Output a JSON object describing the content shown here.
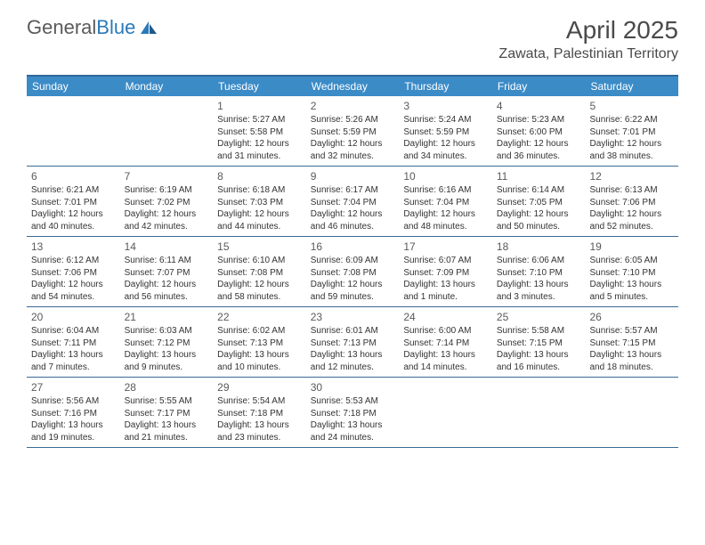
{
  "logo": {
    "text_gray": "General",
    "text_blue": "Blue"
  },
  "header": {
    "month_title": "April 2025",
    "location": "Zawata, Palestinian Territory"
  },
  "colors": {
    "header_bg": "#3b8bc7",
    "header_text": "#ffffff",
    "border": "#3b6a95",
    "top_border": "#30689c",
    "daynum": "#5a5a5a",
    "body_text": "#333333"
  },
  "weekdays": [
    "Sunday",
    "Monday",
    "Tuesday",
    "Wednesday",
    "Thursday",
    "Friday",
    "Saturday"
  ],
  "weeks": [
    [
      {
        "empty": true
      },
      {
        "empty": true
      },
      {
        "day": "1",
        "sunrise": "Sunrise: 5:27 AM",
        "sunset": "Sunset: 5:58 PM",
        "daylight": "Daylight: 12 hours and 31 minutes."
      },
      {
        "day": "2",
        "sunrise": "Sunrise: 5:26 AM",
        "sunset": "Sunset: 5:59 PM",
        "daylight": "Daylight: 12 hours and 32 minutes."
      },
      {
        "day": "3",
        "sunrise": "Sunrise: 5:24 AM",
        "sunset": "Sunset: 5:59 PM",
        "daylight": "Daylight: 12 hours and 34 minutes."
      },
      {
        "day": "4",
        "sunrise": "Sunrise: 5:23 AM",
        "sunset": "Sunset: 6:00 PM",
        "daylight": "Daylight: 12 hours and 36 minutes."
      },
      {
        "day": "5",
        "sunrise": "Sunrise: 6:22 AM",
        "sunset": "Sunset: 7:01 PM",
        "daylight": "Daylight: 12 hours and 38 minutes."
      }
    ],
    [
      {
        "day": "6",
        "sunrise": "Sunrise: 6:21 AM",
        "sunset": "Sunset: 7:01 PM",
        "daylight": "Daylight: 12 hours and 40 minutes."
      },
      {
        "day": "7",
        "sunrise": "Sunrise: 6:19 AM",
        "sunset": "Sunset: 7:02 PM",
        "daylight": "Daylight: 12 hours and 42 minutes."
      },
      {
        "day": "8",
        "sunrise": "Sunrise: 6:18 AM",
        "sunset": "Sunset: 7:03 PM",
        "daylight": "Daylight: 12 hours and 44 minutes."
      },
      {
        "day": "9",
        "sunrise": "Sunrise: 6:17 AM",
        "sunset": "Sunset: 7:04 PM",
        "daylight": "Daylight: 12 hours and 46 minutes."
      },
      {
        "day": "10",
        "sunrise": "Sunrise: 6:16 AM",
        "sunset": "Sunset: 7:04 PM",
        "daylight": "Daylight: 12 hours and 48 minutes."
      },
      {
        "day": "11",
        "sunrise": "Sunrise: 6:14 AM",
        "sunset": "Sunset: 7:05 PM",
        "daylight": "Daylight: 12 hours and 50 minutes."
      },
      {
        "day": "12",
        "sunrise": "Sunrise: 6:13 AM",
        "sunset": "Sunset: 7:06 PM",
        "daylight": "Daylight: 12 hours and 52 minutes."
      }
    ],
    [
      {
        "day": "13",
        "sunrise": "Sunrise: 6:12 AM",
        "sunset": "Sunset: 7:06 PM",
        "daylight": "Daylight: 12 hours and 54 minutes."
      },
      {
        "day": "14",
        "sunrise": "Sunrise: 6:11 AM",
        "sunset": "Sunset: 7:07 PM",
        "daylight": "Daylight: 12 hours and 56 minutes."
      },
      {
        "day": "15",
        "sunrise": "Sunrise: 6:10 AM",
        "sunset": "Sunset: 7:08 PM",
        "daylight": "Daylight: 12 hours and 58 minutes."
      },
      {
        "day": "16",
        "sunrise": "Sunrise: 6:09 AM",
        "sunset": "Sunset: 7:08 PM",
        "daylight": "Daylight: 12 hours and 59 minutes."
      },
      {
        "day": "17",
        "sunrise": "Sunrise: 6:07 AM",
        "sunset": "Sunset: 7:09 PM",
        "daylight": "Daylight: 13 hours and 1 minute."
      },
      {
        "day": "18",
        "sunrise": "Sunrise: 6:06 AM",
        "sunset": "Sunset: 7:10 PM",
        "daylight": "Daylight: 13 hours and 3 minutes."
      },
      {
        "day": "19",
        "sunrise": "Sunrise: 6:05 AM",
        "sunset": "Sunset: 7:10 PM",
        "daylight": "Daylight: 13 hours and 5 minutes."
      }
    ],
    [
      {
        "day": "20",
        "sunrise": "Sunrise: 6:04 AM",
        "sunset": "Sunset: 7:11 PM",
        "daylight": "Daylight: 13 hours and 7 minutes."
      },
      {
        "day": "21",
        "sunrise": "Sunrise: 6:03 AM",
        "sunset": "Sunset: 7:12 PM",
        "daylight": "Daylight: 13 hours and 9 minutes."
      },
      {
        "day": "22",
        "sunrise": "Sunrise: 6:02 AM",
        "sunset": "Sunset: 7:13 PM",
        "daylight": "Daylight: 13 hours and 10 minutes."
      },
      {
        "day": "23",
        "sunrise": "Sunrise: 6:01 AM",
        "sunset": "Sunset: 7:13 PM",
        "daylight": "Daylight: 13 hours and 12 minutes."
      },
      {
        "day": "24",
        "sunrise": "Sunrise: 6:00 AM",
        "sunset": "Sunset: 7:14 PM",
        "daylight": "Daylight: 13 hours and 14 minutes."
      },
      {
        "day": "25",
        "sunrise": "Sunrise: 5:58 AM",
        "sunset": "Sunset: 7:15 PM",
        "daylight": "Daylight: 13 hours and 16 minutes."
      },
      {
        "day": "26",
        "sunrise": "Sunrise: 5:57 AM",
        "sunset": "Sunset: 7:15 PM",
        "daylight": "Daylight: 13 hours and 18 minutes."
      }
    ],
    [
      {
        "day": "27",
        "sunrise": "Sunrise: 5:56 AM",
        "sunset": "Sunset: 7:16 PM",
        "daylight": "Daylight: 13 hours and 19 minutes."
      },
      {
        "day": "28",
        "sunrise": "Sunrise: 5:55 AM",
        "sunset": "Sunset: 7:17 PM",
        "daylight": "Daylight: 13 hours and 21 minutes."
      },
      {
        "day": "29",
        "sunrise": "Sunrise: 5:54 AM",
        "sunset": "Sunset: 7:18 PM",
        "daylight": "Daylight: 13 hours and 23 minutes."
      },
      {
        "day": "30",
        "sunrise": "Sunrise: 5:53 AM",
        "sunset": "Sunset: 7:18 PM",
        "daylight": "Daylight: 13 hours and 24 minutes."
      },
      {
        "empty": true
      },
      {
        "empty": true
      },
      {
        "empty": true
      }
    ]
  ]
}
